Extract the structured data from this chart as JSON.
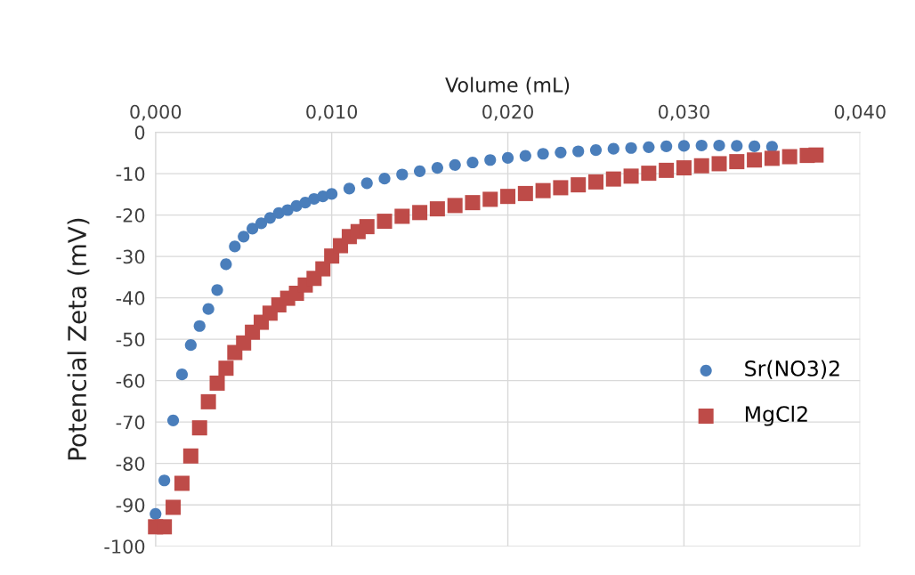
{
  "chart_data": {
    "type": "scatter",
    "xlabel": "Volume (mL)",
    "ylabel": "Potencial Zeta (mV)",
    "xlim": [
      0,
      0.04
    ],
    "ylim": [
      -100,
      0
    ],
    "xticks": [
      {
        "value": 0,
        "label": "0,000"
      },
      {
        "value": 0.01,
        "label": "0,010"
      },
      {
        "value": 0.02,
        "label": "0,020"
      },
      {
        "value": 0.03,
        "label": "0,030"
      },
      {
        "value": 0.04,
        "label": "0,040"
      }
    ],
    "yticks": [
      {
        "value": -100,
        "label": "-100"
      },
      {
        "value": -90,
        "label": "-90"
      },
      {
        "value": -80,
        "label": "-80"
      },
      {
        "value": -70,
        "label": "-70"
      },
      {
        "value": -60,
        "label": "-60"
      },
      {
        "value": -50,
        "label": "-50"
      },
      {
        "value": -40,
        "label": "-40"
      },
      {
        "value": -30,
        "label": "-30"
      },
      {
        "value": -20,
        "label": "-20"
      },
      {
        "value": -10,
        "label": "-10"
      },
      {
        "value": 0,
        "label": "0"
      }
    ],
    "grid": true,
    "legend": "center right",
    "series": [
      {
        "name": "Sr(NO3)2",
        "color": "#4a7ebb",
        "marker": "circle",
        "x": [
          0,
          0.0005,
          0.001,
          0.0015,
          0.002,
          0.0025,
          0.003,
          0.0035,
          0.004,
          0.0045,
          0.005,
          0.0055,
          0.006,
          0.0065,
          0.007,
          0.0075,
          0.008,
          0.0085,
          0.009,
          0.0095,
          0.01,
          0.011,
          0.012,
          0.013,
          0.014,
          0.015,
          0.016,
          0.017,
          0.018,
          0.019,
          0.02,
          0.021,
          0.022,
          0.023,
          0.024,
          0.025,
          0.026,
          0.027,
          0.028,
          0.029,
          0.03,
          0.031,
          0.032,
          0.033,
          0.034,
          0.035
        ],
        "values": [
          -92.2,
          -84.1,
          -69.6,
          -58.5,
          -51.4,
          -46.8,
          -42.7,
          -38.1,
          -31.9,
          -27.6,
          -25.2,
          -23.3,
          -22.0,
          -20.7,
          -19.5,
          -18.8,
          -17.8,
          -17.0,
          -16.1,
          -15.5,
          -14.9,
          -13.6,
          -12.3,
          -11.2,
          -10.2,
          -9.4,
          -8.6,
          -7.9,
          -7.3,
          -6.7,
          -6.2,
          -5.7,
          -5.2,
          -4.9,
          -4.6,
          -4.3,
          -4.0,
          -3.8,
          -3.6,
          -3.4,
          -3.3,
          -3.2,
          -3.2,
          -3.3,
          -3.4,
          -3.5
        ]
      },
      {
        "name": "MgCl2",
        "color": "#be4b48",
        "marker": "square",
        "x": [
          0,
          0.0005,
          0.001,
          0.0015,
          0.002,
          0.0025,
          0.003,
          0.0035,
          0.004,
          0.0045,
          0.005,
          0.0055,
          0.006,
          0.0065,
          0.007,
          0.0075,
          0.008,
          0.0085,
          0.009,
          0.0095,
          0.01,
          0.0105,
          0.011,
          0.0115,
          0.012,
          0.013,
          0.014,
          0.015,
          0.016,
          0.017,
          0.018,
          0.019,
          0.02,
          0.021,
          0.022,
          0.023,
          0.024,
          0.025,
          0.026,
          0.027,
          0.028,
          0.029,
          0.03,
          0.031,
          0.032,
          0.033,
          0.034,
          0.035,
          0.036,
          0.037,
          0.0375
        ],
        "values": [
          -95.3,
          -95.3,
          -90.6,
          -84.8,
          -78.2,
          -71.4,
          -65.1,
          -60.6,
          -57.0,
          -53.2,
          -50.9,
          -48.3,
          -45.9,
          -43.7,
          -41.7,
          -40.1,
          -38.9,
          -36.9,
          -35.3,
          -33.0,
          -29.9,
          -27.4,
          -25.2,
          -24.0,
          -22.8,
          -21.5,
          -20.3,
          -19.4,
          -18.5,
          -17.7,
          -17.0,
          -16.2,
          -15.5,
          -14.8,
          -14.1,
          -13.4,
          -12.7,
          -12.0,
          -11.3,
          -10.6,
          -9.9,
          -9.2,
          -8.6,
          -8.1,
          -7.6,
          -7.1,
          -6.7,
          -6.3,
          -5.9,
          -5.6,
          -5.5
        ]
      }
    ]
  }
}
